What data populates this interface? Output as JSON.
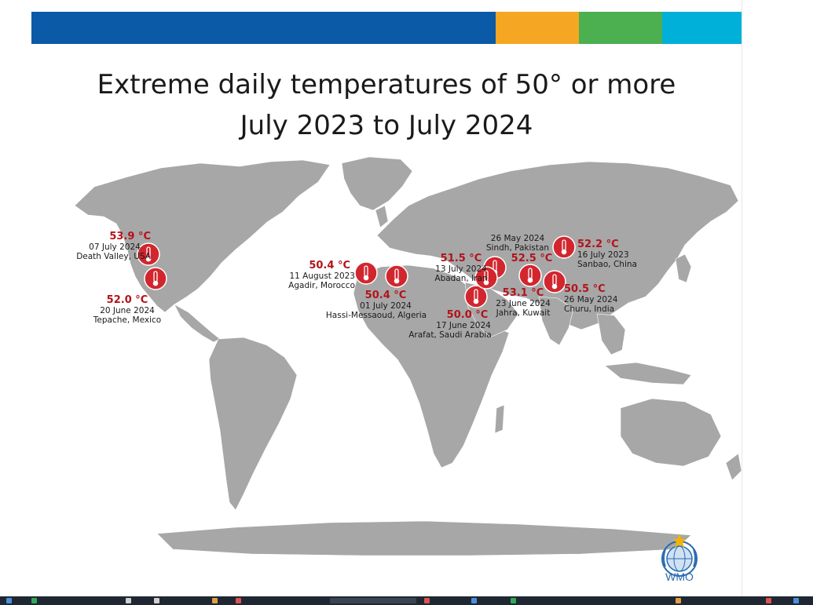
{
  "header": {
    "band_colors": [
      "#0b5aa8",
      "#f5a623",
      "#4caf50",
      "#00b0d8"
    ]
  },
  "title": {
    "line1": "Extreme daily temperatures of 50° or more",
    "line2": "July 2023 to July 2024"
  },
  "colors": {
    "land": "#a7a7a7",
    "marker": "#d2262e",
    "temp_text": "#b3121b"
  },
  "markers": [
    {
      "id": "death-valley",
      "temp": "53.9 °C",
      "date": "07 July 2024",
      "place": "Death Valley, USA"
    },
    {
      "id": "tepache",
      "temp": "52.0 °C",
      "date": "20 June 2024",
      "place": "Tepache, Mexico"
    },
    {
      "id": "agadir",
      "temp": "50.4 °C",
      "date": "11 August 2023",
      "place": "Agadir, Morocco"
    },
    {
      "id": "hassi-messaoud",
      "temp": "50.4 °C",
      "date": "01 July 2024",
      "place": "Hassi-Messaoud, Algeria"
    },
    {
      "id": "abadan",
      "temp": "51.5 °C",
      "date": "13 July 2024",
      "place": "Abadan, Iran"
    },
    {
      "id": "arafat",
      "temp": "50.0 °C",
      "date": "17 June 2024",
      "place": "Arafat, Saudi Arabia"
    },
    {
      "id": "jahra",
      "temp": "53.1 °C",
      "date": "23 June 2024",
      "place": "Jahra, Kuwait"
    },
    {
      "id": "sindh",
      "temp": "52.5 °C",
      "date": "26 May 2024",
      "place": "Sindh, Pakistan"
    },
    {
      "id": "churu",
      "temp": "50.5 °C",
      "date": "26 May 2024",
      "place": "Churu, India"
    },
    {
      "id": "sanbao",
      "temp": "52.2 °C",
      "date": "16 July 2023",
      "place": "Sanbao, China"
    }
  ],
  "logo": {
    "text": "WMO"
  }
}
